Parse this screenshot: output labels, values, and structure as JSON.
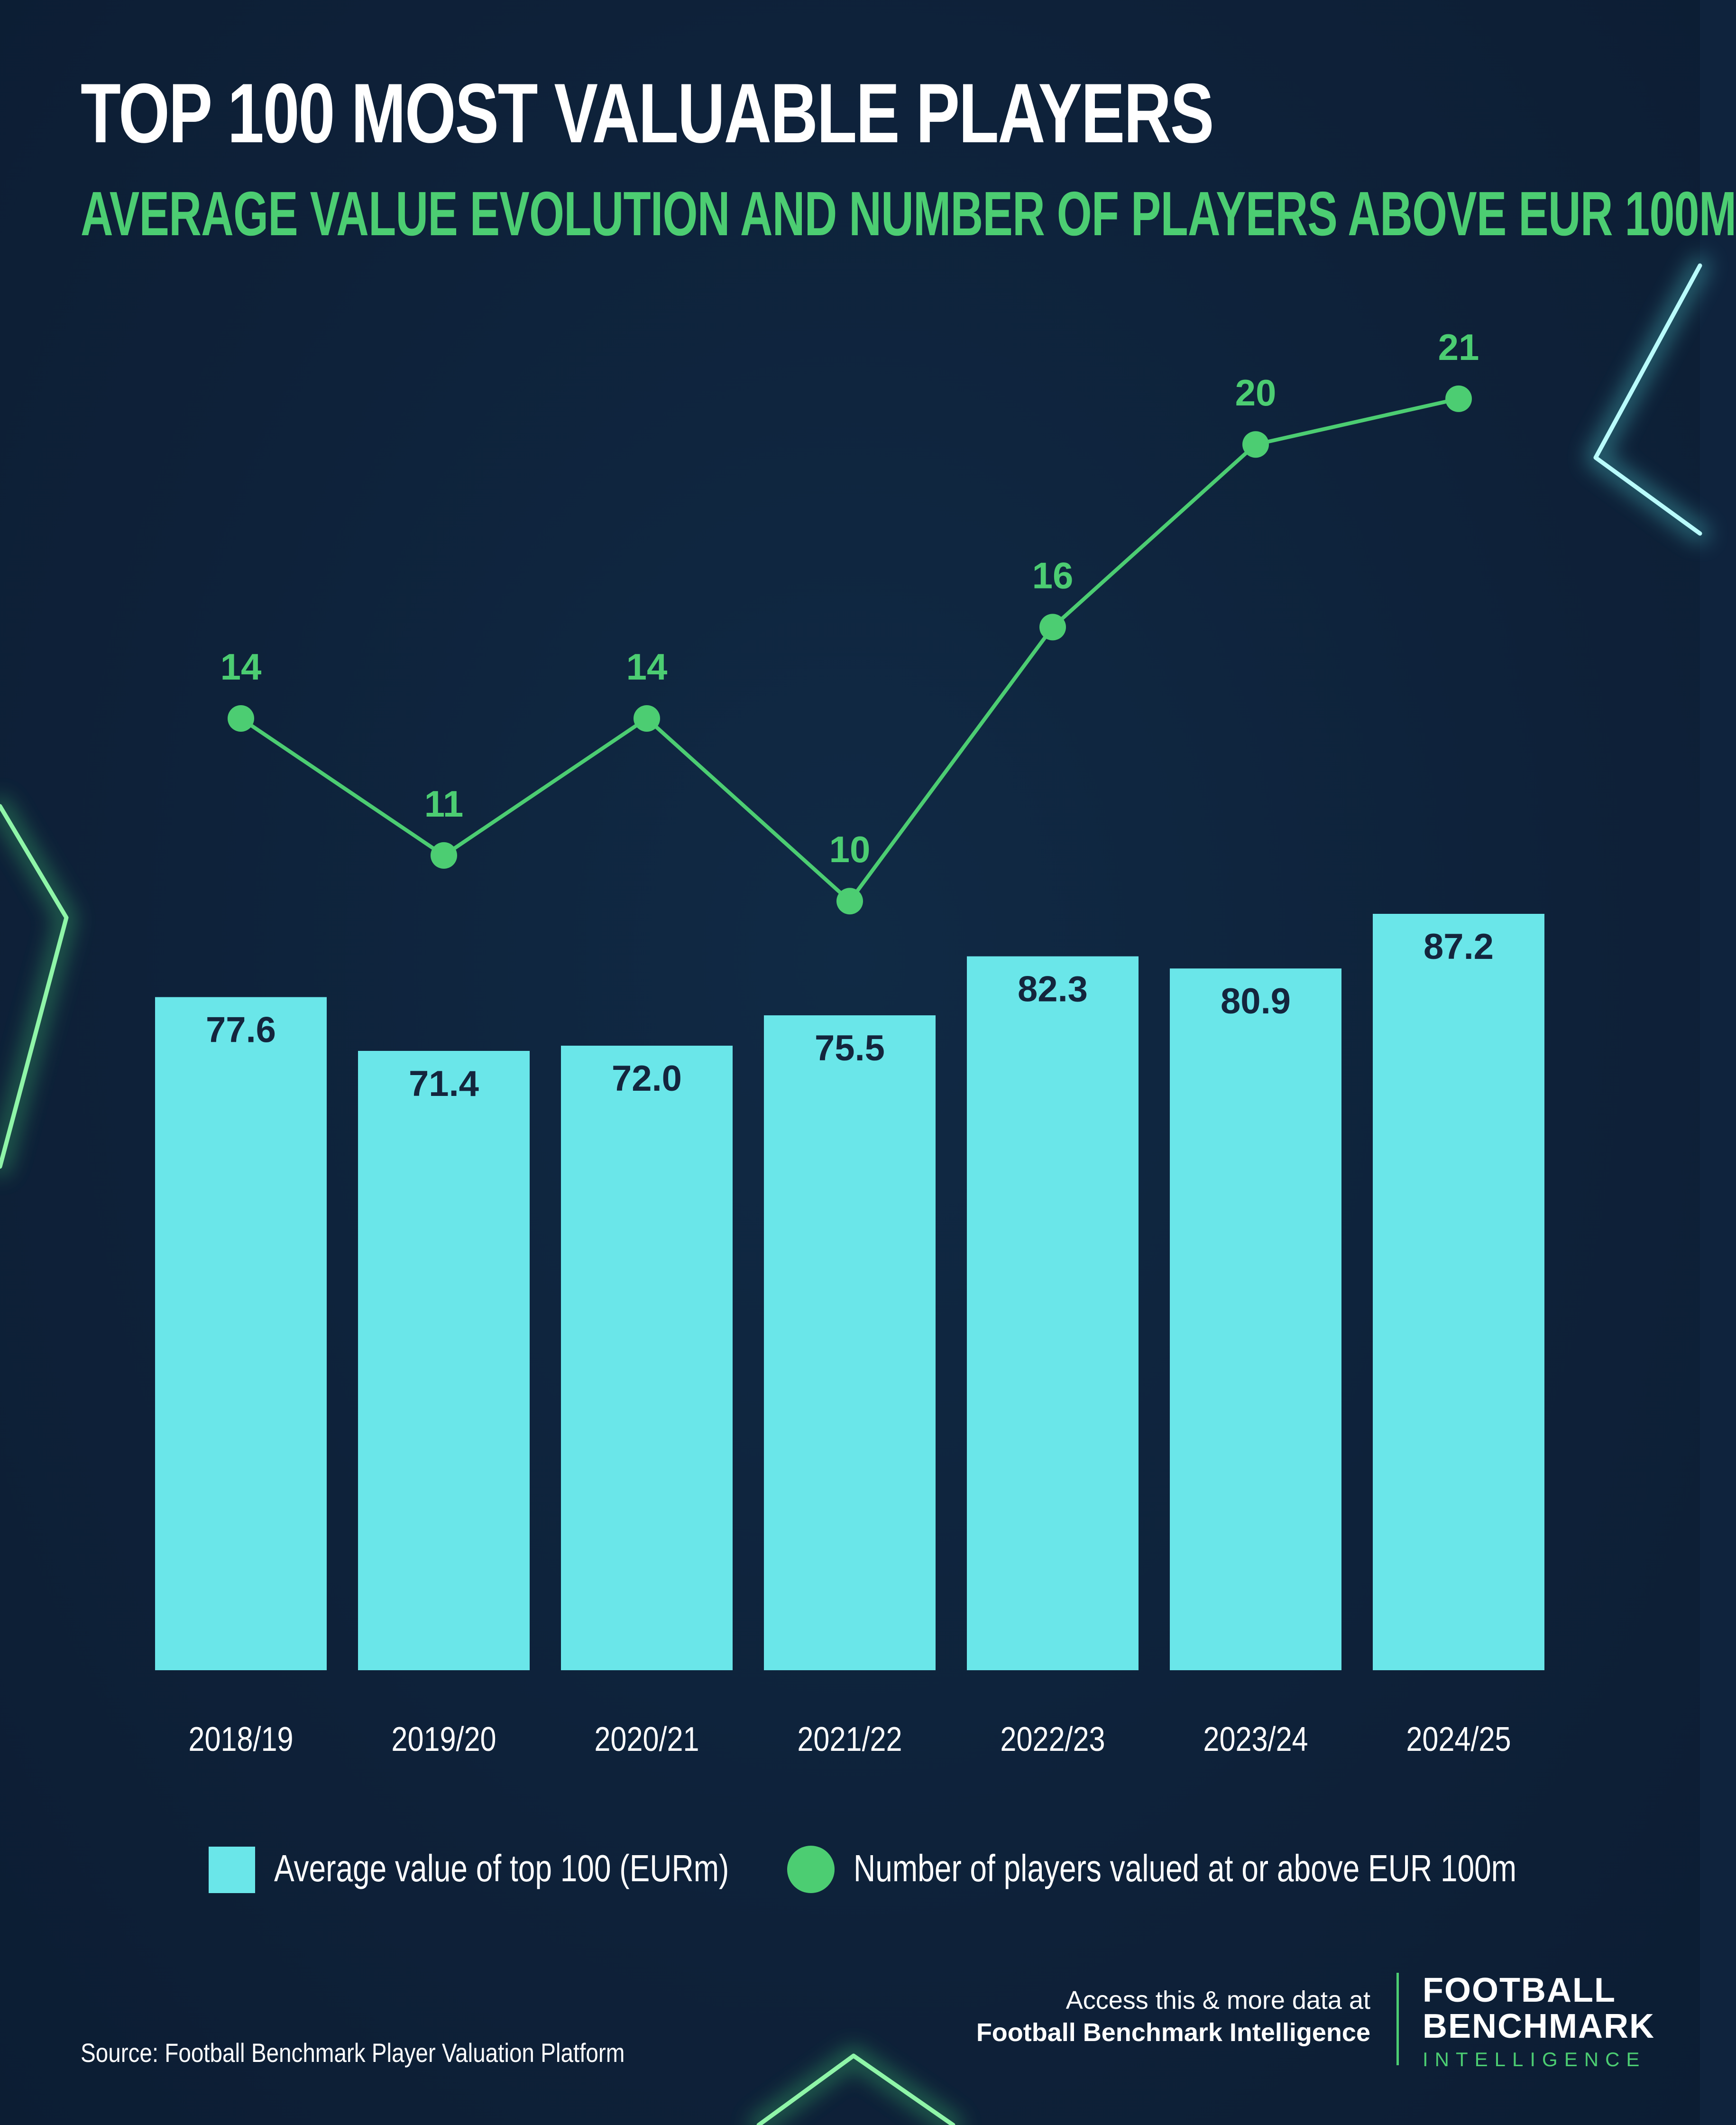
{
  "title": "TOP 100 MOST VALUABLE PLAYERS",
  "subtitle": "AVERAGE VALUE EVOLUTION AND NUMBER OF PLAYERS ABOVE EUR 100M",
  "colors": {
    "background": "#0f233d",
    "bar": "#6ae6e9",
    "line": "#4ccd72",
    "bar_label": "#14253d",
    "axis_label": "#ffffff"
  },
  "chart_data": {
    "type": "bar",
    "categories": [
      "2018/19",
      "2019/20",
      "2020/21",
      "2021/22",
      "2022/23",
      "2023/24",
      "2024/25"
    ],
    "series": [
      {
        "name": "Average value of top 100 (EURm)",
        "type": "bar",
        "values": [
          77.6,
          71.4,
          72.0,
          75.5,
          82.3,
          80.9,
          87.2
        ],
        "labels": [
          "77.6",
          "71.4",
          "72.0",
          "75.5",
          "82.3",
          "80.9",
          "87.2"
        ]
      },
      {
        "name": "Number of players valued at or above EUR 100m",
        "type": "line",
        "values": [
          14,
          11,
          14,
          10,
          16,
          20,
          21
        ]
      }
    ],
    "xlabel": "",
    "ylabel": "",
    "grid": false,
    "legend_position": "bottom"
  },
  "legend": {
    "bar_label": "Average value of top 100 (EURm)",
    "line_label": "Number of players valued at or above EUR 100m"
  },
  "source": "Source: Football Benchmark Player Valuation Platform",
  "cta": {
    "line1": "Access this & more data at",
    "line2": "Football Benchmark Intelligence"
  },
  "logo": {
    "line1": "FOOTBALL",
    "line2": "BENCHMARK",
    "line3": "INTELLIGENCE"
  }
}
